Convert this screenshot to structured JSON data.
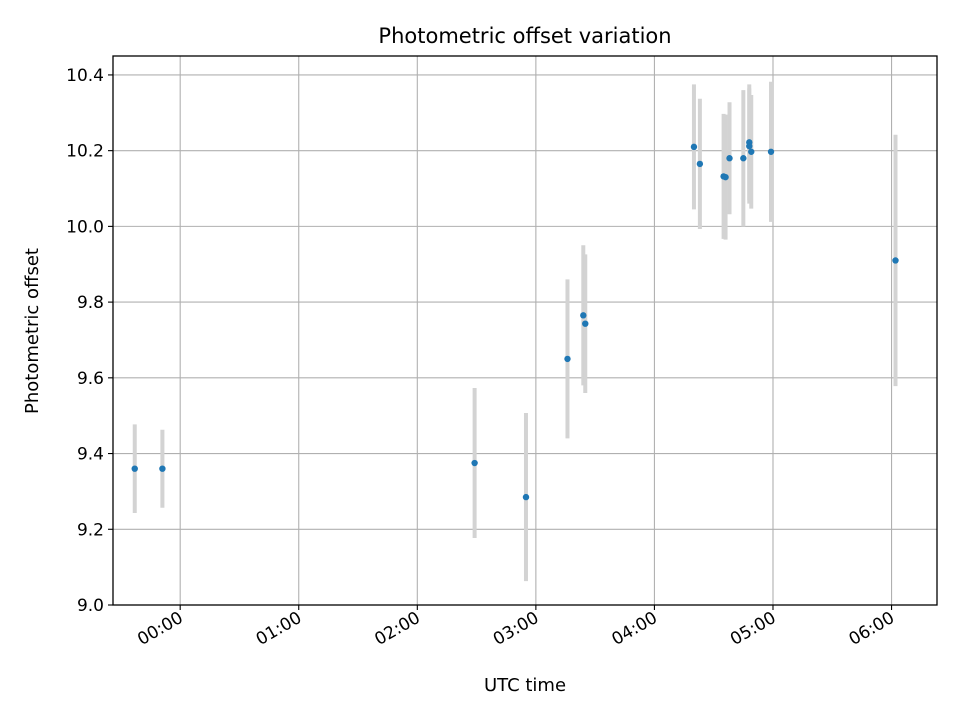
{
  "chart_data": {
    "type": "scatter",
    "title": "Photometric offset variation",
    "xlabel": "UTC time",
    "ylabel": "Photometric offset",
    "ylim": [
      9.0,
      10.45
    ],
    "xlim": [
      "23:26",
      "06:23"
    ],
    "x_ticks": [
      "00:00",
      "01:00",
      "02:00",
      "03:00",
      "04:00",
      "05:00",
      "06:00"
    ],
    "y_ticks": [
      "9.0",
      "9.2",
      "9.4",
      "9.6",
      "9.8",
      "10.0",
      "10.2",
      "10.4"
    ],
    "grid": true,
    "legend": "none",
    "point_color": "#1f77b4",
    "errorbar_color": "#d3d3d3",
    "points": [
      {
        "x": "23:37",
        "y": 9.36,
        "yerr": 0.117
      },
      {
        "x": "23:51",
        "y": 9.36,
        "yerr": 0.103
      },
      {
        "x": "02:29",
        "y": 9.375,
        "yerr": 0.198
      },
      {
        "x": "02:55",
        "y": 9.285,
        "yerr": 0.222
      },
      {
        "x": "03:16",
        "y": 9.65,
        "yerr": 0.21
      },
      {
        "x": "03:24",
        "y": 9.765,
        "yerr": 0.185
      },
      {
        "x": "03:25",
        "y": 9.743,
        "yerr": 0.183
      },
      {
        "x": "04:20",
        "y": 10.21,
        "yerr": 0.165
      },
      {
        "x": "04:23",
        "y": 10.165,
        "yerr": 0.172
      },
      {
        "x": "04:35",
        "y": 10.132,
        "yerr": 0.165
      },
      {
        "x": "04:36",
        "y": 10.13,
        "yerr": 0.165
      },
      {
        "x": "04:38",
        "y": 10.18,
        "yerr": 0.148
      },
      {
        "x": "04:45",
        "y": 10.18,
        "yerr": 0.18
      },
      {
        "x": "04:48",
        "y": 10.222,
        "yerr": 0.153
      },
      {
        "x": "04:48",
        "y": 10.212,
        "yerr": 0.152
      },
      {
        "x": "04:49",
        "y": 10.197,
        "yerr": 0.15
      },
      {
        "x": "04:59",
        "y": 10.197,
        "yerr": 0.185
      },
      {
        "x": "06:02",
        "y": 9.91,
        "yerr": 0.332
      }
    ]
  }
}
